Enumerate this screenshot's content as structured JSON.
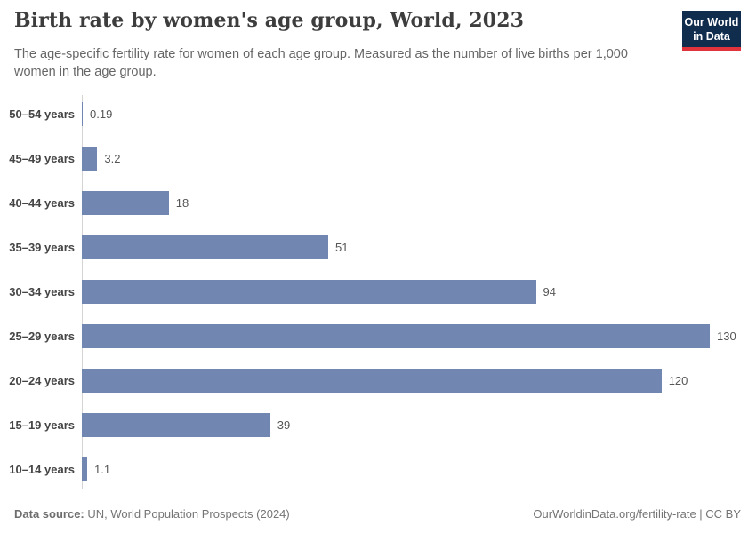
{
  "header": {
    "title": "Birth rate by women's age group, World, 2023",
    "subtitle": "The age-specific fertility rate for women of each age group. Measured as the number of live births per 1,000 women in the age group.",
    "logo": {
      "line1": "Our World",
      "line2": "in Data"
    }
  },
  "chart_data": {
    "type": "bar",
    "orientation": "horizontal",
    "title": "Birth rate by women's age group, World, 2023",
    "categories": [
      "50–54 years",
      "45–49 years",
      "40–44 years",
      "35–39 years",
      "30–34 years",
      "25–29 years",
      "20–24 years",
      "15–19 years",
      "10–14 years"
    ],
    "values": [
      0.19,
      3.2,
      18,
      51,
      94,
      130,
      120,
      39,
      1.1
    ],
    "value_labels": [
      "0.19",
      "3.2",
      "18",
      "51",
      "94",
      "130",
      "120",
      "39",
      "1.1"
    ],
    "xlabel": "",
    "ylabel": "",
    "xlim": [
      0,
      130
    ],
    "grid": false,
    "legend": false,
    "bar_color": "#7186b0",
    "axis_color": "#d4d4d4"
  },
  "footer": {
    "source_label": "Data source:",
    "source_text": " UN, World Population Prospects (2024)",
    "link_text": "OurWorldinData.org/fertility-rate | CC BY"
  }
}
